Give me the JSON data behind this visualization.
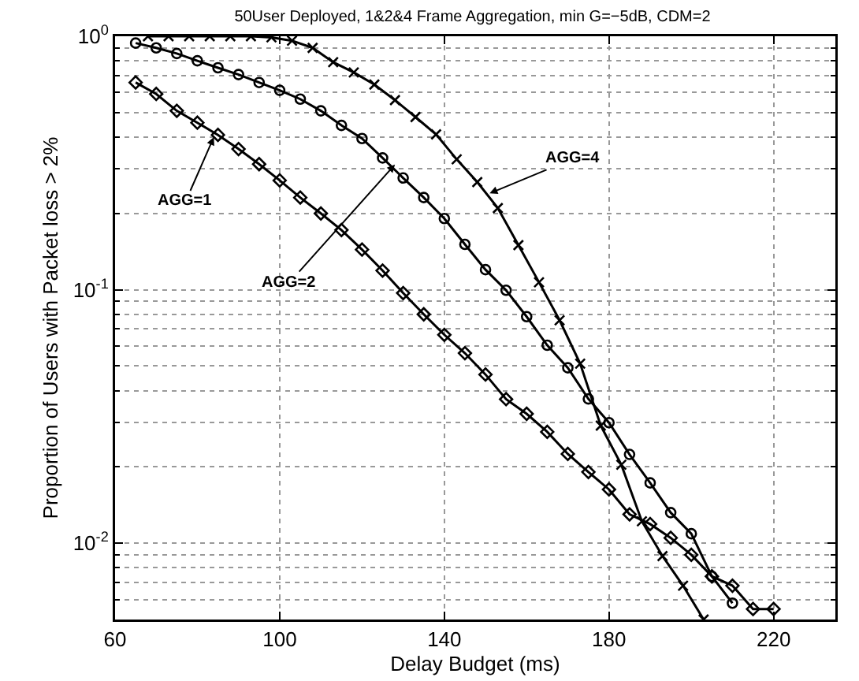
{
  "chart_data": {
    "type": "line",
    "title": "50User Deployed, 1&2&4 Frame Aggregation, min G=−5dB, CDM=2",
    "xlabel": "Delay Budget (ms)",
    "ylabel": "Proportion of Users with Packet loss > 2%",
    "log": "y",
    "grid": true,
    "line_style": "solid",
    "xlim": [
      60,
      235
    ],
    "xticks": [
      60,
      100,
      140,
      180,
      220
    ],
    "ylim": [
      0.005,
      1
    ],
    "yticks": [
      {
        "value": 1,
        "label": "10$^{0}$"
      },
      {
        "value": 0.1,
        "label": "10$^{-1}$"
      },
      {
        "value": 0.01,
        "label": "10$^{-2}$"
      }
    ],
    "series": [
      {
        "color": "#000000",
        "marker": "diamond",
        "x": [
          65,
          70,
          75,
          80,
          85,
          90,
          95,
          100,
          105,
          110,
          115,
          120,
          125,
          130,
          135,
          140,
          145,
          150,
          155,
          160,
          165,
          170,
          175,
          180,
          185,
          190,
          195,
          200,
          205,
          210,
          215,
          220
        ],
        "values": [
          0.657,
          0.592,
          0.508,
          0.456,
          0.408,
          0.359,
          0.313,
          0.27,
          0.231,
          0.2,
          0.172,
          0.144,
          0.119,
          0.097,
          0.08,
          0.0664,
          0.0562,
          0.0463,
          0.037,
          0.0324,
          0.0275,
          0.0225,
          0.0191,
          0.0163,
          0.013,
          0.0119,
          0.0105,
          0.009,
          0.0074,
          0.0068,
          0.0055,
          0.0055
        ]
      },
      {
        "color": "#000000",
        "marker": "circle",
        "x": [
          65,
          70,
          75,
          80,
          85,
          90,
          95,
          100,
          105,
          110,
          115,
          120,
          125,
          130,
          135,
          140,
          145,
          150,
          155,
          160,
          165,
          170,
          175,
          180,
          185,
          190,
          195,
          200,
          205,
          210
        ],
        "values": [
          0.94,
          0.9,
          0.855,
          0.8,
          0.751,
          0.706,
          0.657,
          0.612,
          0.565,
          0.508,
          0.445,
          0.395,
          0.331,
          0.276,
          0.231,
          0.191,
          0.151,
          0.12,
          0.0995,
          0.0783,
          0.0604,
          0.0492,
          0.0371,
          0.0299,
          0.0224,
          0.0173,
          0.0132,
          0.0109,
          0.0074,
          0.0058
        ]
      },
      {
        "color": "#000000",
        "marker": "cross",
        "x": [
          68,
          73,
          78,
          83,
          88,
          93,
          98,
          103,
          108,
          113,
          118,
          123,
          128,
          133,
          138,
          143,
          148,
          153,
          158,
          163,
          168,
          173,
          178,
          183,
          188,
          193,
          198,
          203
        ],
        "values": [
          1,
          1,
          1,
          1,
          1,
          1,
          0.99,
          0.96,
          0.9,
          0.79,
          0.72,
          0.645,
          0.56,
          0.48,
          0.41,
          0.327,
          0.266,
          0.21,
          0.15,
          0.107,
          0.0758,
          0.0511,
          0.0291,
          0.0204,
          0.0122,
          0.0089,
          0.0068,
          0.005
        ]
      }
    ],
    "annotations": [
      {
        "text": "AGG=1",
        "x": 84,
        "y": 0.4
      },
      {
        "text": "AGG=2",
        "x": 128,
        "y": 0.312
      },
      {
        "text": "AGG=4",
        "x": 151,
        "y": 0.24
      }
    ]
  }
}
